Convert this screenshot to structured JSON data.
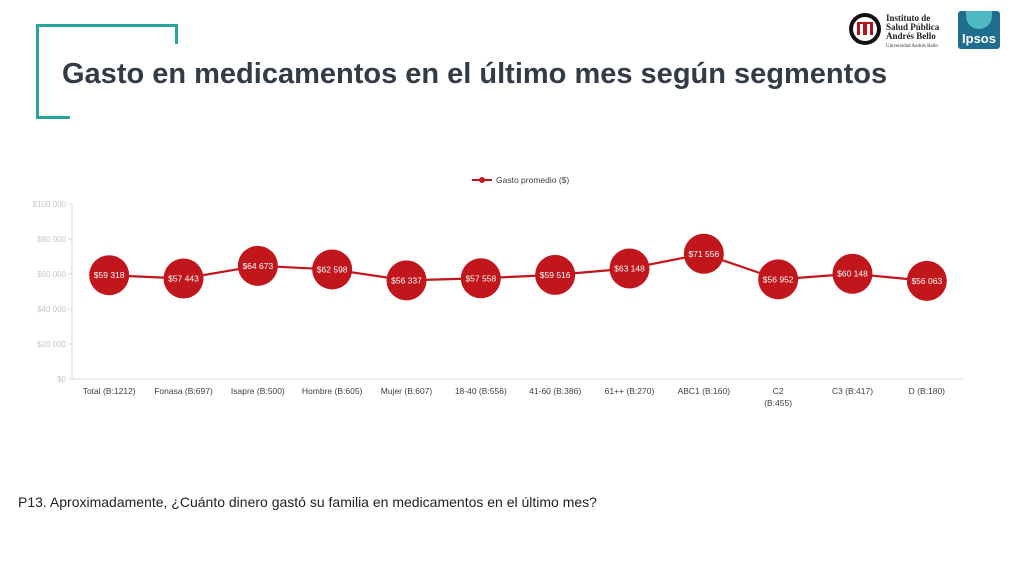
{
  "slide": {
    "title": "Gasto en medicamentos en el último mes según segmentos",
    "question": "P13. Aproximadamente, ¿Cuánto dinero gastó su familia en medicamentos en el último mes?"
  },
  "logos": {
    "isp_lines": [
      "Instituto de",
      "Salud Pública",
      "Andrés Bello"
    ],
    "isp_sub": "Universidad Andrés Bello",
    "ipsos": "Ipsos"
  },
  "colors": {
    "accent_frame": "#2aa39a",
    "series": "#c0161c",
    "title": "#333b44",
    "axis_text": "#c8c8c8"
  },
  "chart_data": {
    "type": "line",
    "legend": "top-center",
    "grid": false,
    "ylim": [
      0,
      100000
    ],
    "y_ticks": [
      0,
      20000,
      40000,
      60000,
      80000,
      100000
    ],
    "y_tick_labels": [
      "$0",
      "$20 000",
      "$40 000",
      "$60 000",
      "$80 000",
      "$100 000"
    ],
    "x_tick_labels": [
      "Total (B:1212)",
      "Fonasa (B:697)",
      "Isapre     (B:500)",
      "Hombre (B:605)",
      "Mujer     (B:607)",
      "18-40     (B:556)",
      "41-60     (B:386)",
      "61++     (B:270)",
      "ABC1     (B:160)",
      "C2\n(B:455)",
      "C3     (B:417)",
      "D     (B:180)"
    ],
    "series": [
      {
        "name": "Gasto promedio ($)",
        "values": [
          59318,
          57443,
          64673,
          62598,
          56337,
          57558,
          59516,
          63148,
          71556,
          56952,
          60148,
          56063
        ],
        "labels": [
          "$59 318",
          "$57 443",
          "$64 673",
          "$62 598",
          "$56 337",
          "$57 558",
          "$59 516",
          "$63 148",
          "$71 556",
          "$56 952",
          "$60 148",
          "$56 063"
        ]
      }
    ]
  }
}
